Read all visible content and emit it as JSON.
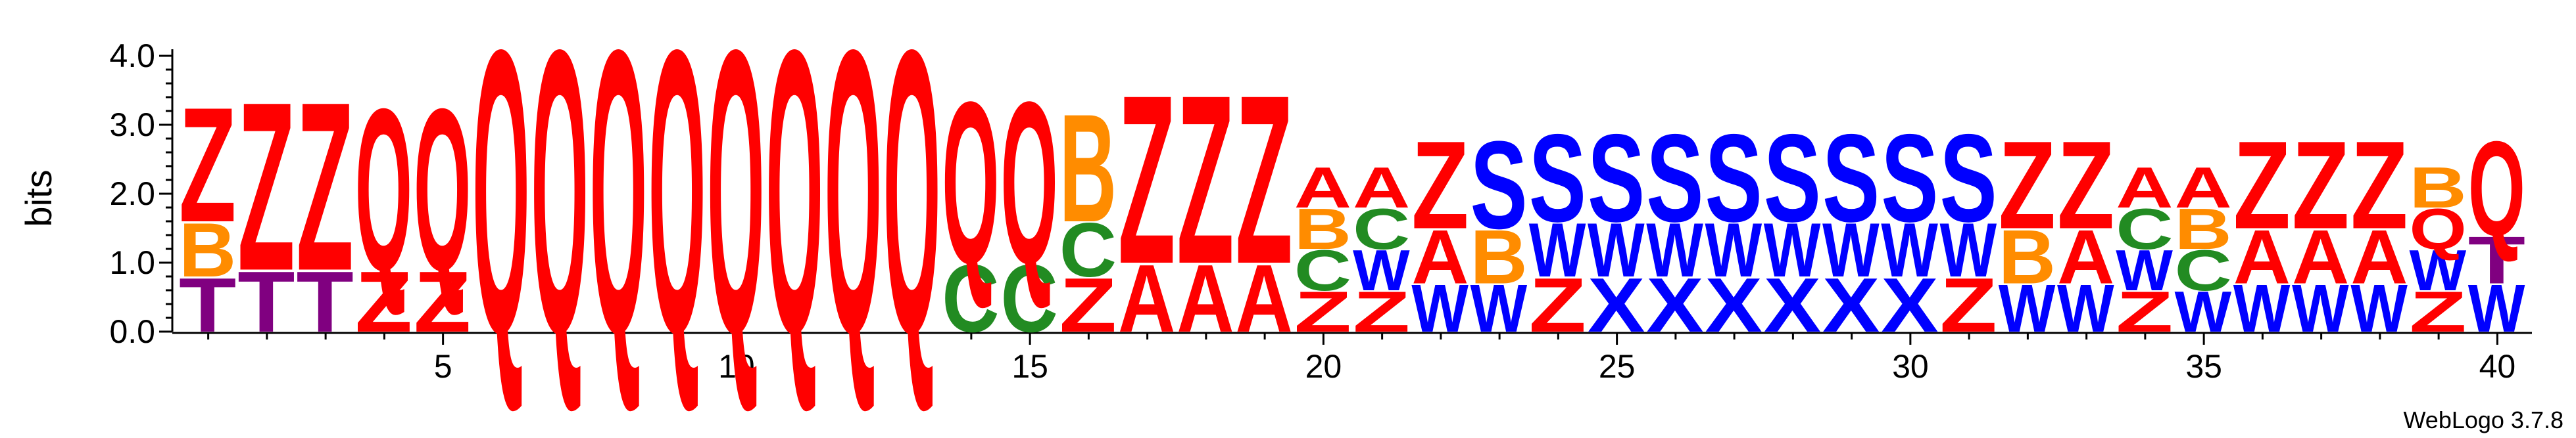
{
  "chart_data": {
    "type": "sequence-logo",
    "ylabel": "bits",
    "ylim": [
      0,
      4.0
    ],
    "yticks": [
      "0.0",
      "1.0",
      "2.0",
      "3.0",
      "4.0"
    ],
    "xticks": [
      5,
      10,
      15,
      20,
      25,
      30,
      35,
      40
    ],
    "credit": "WebLogo 3.7.8",
    "colors": {
      "Z": "#ff0000",
      "Q": "#ff0000",
      "A": "#ff0000",
      "B": "#ff8c00",
      "C": "#228b22",
      "T": "#800080",
      "S": "#0000ff",
      "W": "#0000ff",
      "X": "#0000ff"
    },
    "positions": [
      {
        "pos": 1,
        "stack": [
          [
            "T",
            0.8
          ],
          [
            "B",
            0.8
          ],
          [
            "Z",
            1.7
          ]
        ]
      },
      {
        "pos": 2,
        "stack": [
          [
            "T",
            0.9
          ],
          [
            "Z",
            2.5
          ]
        ]
      },
      {
        "pos": 3,
        "stack": [
          [
            "T",
            0.9
          ],
          [
            "Z",
            2.5
          ]
        ]
      },
      {
        "pos": 4,
        "stack": [
          [
            "Z",
            0.9
          ],
          [
            "Q",
            2.4
          ]
        ]
      },
      {
        "pos": 5,
        "stack": [
          [
            "Z",
            0.9
          ],
          [
            "Q",
            2.4
          ]
        ]
      },
      {
        "pos": 6,
        "stack": [
          [
            "Q",
            4.2
          ]
        ]
      },
      {
        "pos": 7,
        "stack": [
          [
            "Q",
            4.2
          ]
        ]
      },
      {
        "pos": 8,
        "stack": [
          [
            "Q",
            4.2
          ]
        ]
      },
      {
        "pos": 9,
        "stack": [
          [
            "Q",
            4.2
          ]
        ]
      },
      {
        "pos": 10,
        "stack": [
          [
            "Q",
            4.2
          ]
        ]
      },
      {
        "pos": 11,
        "stack": [
          [
            "Q",
            4.2
          ]
        ]
      },
      {
        "pos": 12,
        "stack": [
          [
            "Q",
            4.2
          ]
        ]
      },
      {
        "pos": 13,
        "stack": [
          [
            "Q",
            4.2
          ]
        ]
      },
      {
        "pos": 14,
        "stack": [
          [
            "C",
            1.0
          ],
          [
            "Q",
            2.4
          ]
        ]
      },
      {
        "pos": 15,
        "stack": [
          [
            "C",
            1.0
          ],
          [
            "Q",
            2.4
          ]
        ]
      },
      {
        "pos": 16,
        "stack": [
          [
            "Z",
            0.8
          ],
          [
            "C",
            0.8
          ],
          [
            "B",
            1.6
          ]
        ]
      },
      {
        "pos": 17,
        "stack": [
          [
            "A",
            1.0
          ],
          [
            "Z",
            2.5
          ]
        ]
      },
      {
        "pos": 18,
        "stack": [
          [
            "A",
            1.0
          ],
          [
            "Z",
            2.5
          ]
        ]
      },
      {
        "pos": 19,
        "stack": [
          [
            "A",
            1.0
          ],
          [
            "Z",
            2.5
          ]
        ]
      },
      {
        "pos": 20,
        "stack": [
          [
            "Z",
            0.6
          ],
          [
            "C",
            0.6
          ],
          [
            "B",
            0.6
          ],
          [
            "A",
            0.6
          ]
        ]
      },
      {
        "pos": 21,
        "stack": [
          [
            "Z",
            0.6
          ],
          [
            "W",
            0.6
          ],
          [
            "C",
            0.6
          ],
          [
            "A",
            0.6
          ]
        ]
      },
      {
        "pos": 22,
        "stack": [
          [
            "W",
            0.7
          ],
          [
            "A",
            0.8
          ],
          [
            "Z",
            1.3
          ]
        ]
      },
      {
        "pos": 23,
        "stack": [
          [
            "W",
            0.7
          ],
          [
            "B",
            0.8
          ],
          [
            "S",
            1.3
          ]
        ]
      },
      {
        "pos": 24,
        "stack": [
          [
            "Z",
            0.8
          ],
          [
            "W",
            0.8
          ],
          [
            "S",
            1.3
          ]
        ]
      },
      {
        "pos": 25,
        "stack": [
          [
            "X",
            0.8
          ],
          [
            "W",
            0.8
          ],
          [
            "S",
            1.3
          ]
        ]
      },
      {
        "pos": 26,
        "stack": [
          [
            "X",
            0.8
          ],
          [
            "W",
            0.8
          ],
          [
            "S",
            1.3
          ]
        ]
      },
      {
        "pos": 27,
        "stack": [
          [
            "X",
            0.8
          ],
          [
            "W",
            0.8
          ],
          [
            "S",
            1.3
          ]
        ]
      },
      {
        "pos": 28,
        "stack": [
          [
            "X",
            0.8
          ],
          [
            "W",
            0.8
          ],
          [
            "S",
            1.3
          ]
        ]
      },
      {
        "pos": 29,
        "stack": [
          [
            "X",
            0.8
          ],
          [
            "W",
            0.8
          ],
          [
            "S",
            1.3
          ]
        ]
      },
      {
        "pos": 30,
        "stack": [
          [
            "X",
            0.8
          ],
          [
            "W",
            0.8
          ],
          [
            "S",
            1.3
          ]
        ]
      },
      {
        "pos": 31,
        "stack": [
          [
            "Z",
            0.8
          ],
          [
            "W",
            0.8
          ],
          [
            "S",
            1.3
          ]
        ]
      },
      {
        "pos": 32,
        "stack": [
          [
            "W",
            0.7
          ],
          [
            "B",
            0.8
          ],
          [
            "Z",
            1.3
          ]
        ]
      },
      {
        "pos": 33,
        "stack": [
          [
            "W",
            0.7
          ],
          [
            "A",
            0.8
          ],
          [
            "Z",
            1.3
          ]
        ]
      },
      {
        "pos": 34,
        "stack": [
          [
            "Z",
            0.6
          ],
          [
            "W",
            0.6
          ],
          [
            "C",
            0.6
          ],
          [
            "A",
            0.6
          ]
        ]
      },
      {
        "pos": 35,
        "stack": [
          [
            "W",
            0.6
          ],
          [
            "C",
            0.6
          ],
          [
            "B",
            0.6
          ],
          [
            "A",
            0.6
          ]
        ]
      },
      {
        "pos": 36,
        "stack": [
          [
            "W",
            0.7
          ],
          [
            "A",
            0.8
          ],
          [
            "Z",
            1.3
          ]
        ]
      },
      {
        "pos": 37,
        "stack": [
          [
            "W",
            0.7
          ],
          [
            "A",
            0.8
          ],
          [
            "Z",
            1.3
          ]
        ]
      },
      {
        "pos": 38,
        "stack": [
          [
            "W",
            0.7
          ],
          [
            "A",
            0.8
          ],
          [
            "Z",
            1.3
          ]
        ]
      },
      {
        "pos": 39,
        "stack": [
          [
            "Z",
            0.6
          ],
          [
            "W",
            0.6
          ],
          [
            "Q",
            0.6
          ],
          [
            "B",
            0.6
          ]
        ]
      },
      {
        "pos": 40,
        "stack": [
          [
            "W",
            0.7
          ],
          [
            "T",
            0.7
          ],
          [
            "Q",
            1.4
          ]
        ]
      }
    ]
  }
}
